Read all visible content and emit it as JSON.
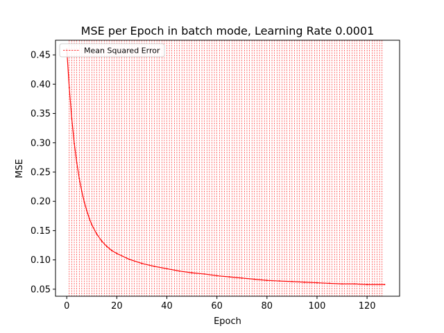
{
  "chart_data": {
    "type": "line",
    "title": "MSE per Epoch in batch mode, Learning Rate 0.0001",
    "xlabel": "Epoch",
    "ylabel": "MSE",
    "xlim": [
      -4.5,
      133
    ],
    "ylim": [
      0.038,
      0.475
    ],
    "xticks": [
      0,
      20,
      40,
      60,
      80,
      100,
      120
    ],
    "xtick_labels": [
      "0",
      "20",
      "40",
      "60",
      "80",
      "100",
      "120"
    ],
    "yticks": [
      0.05,
      0.1,
      0.15,
      0.2,
      0.25,
      0.3,
      0.35,
      0.4,
      0.45
    ],
    "ytick_labels": [
      "0.05",
      "0.10",
      "0.15",
      "0.20",
      "0.25",
      "0.30",
      "0.35",
      "0.40",
      "0.45"
    ],
    "grid": false,
    "legend_position": "top-left",
    "epoch_vlines": {
      "from": 1,
      "to": 126,
      "step": 1,
      "color": "#ff0000",
      "style": "dashed",
      "legend_label": "Mean Squared Error"
    },
    "series": [
      {
        "color": "#ff0000",
        "x": [
          0,
          1,
          2,
          3,
          4,
          5,
          6,
          7,
          8,
          9,
          10,
          12,
          14,
          16,
          18,
          20,
          25,
          30,
          35,
          40,
          45,
          50,
          55,
          60,
          65,
          70,
          75,
          80,
          85,
          90,
          95,
          100,
          105,
          110,
          115,
          120,
          127
        ],
        "values": [
          0.46,
          0.394,
          0.341,
          0.299,
          0.266,
          0.239,
          0.217,
          0.199,
          0.184,
          0.171,
          0.16,
          0.144,
          0.132,
          0.123,
          0.116,
          0.111,
          0.101,
          0.094,
          0.089,
          0.085,
          0.081,
          0.078,
          0.076,
          0.073,
          0.071,
          0.069,
          0.067,
          0.065,
          0.064,
          0.063,
          0.062,
          0.061,
          0.06,
          0.059,
          0.059,
          0.058,
          0.058
        ]
      }
    ]
  }
}
